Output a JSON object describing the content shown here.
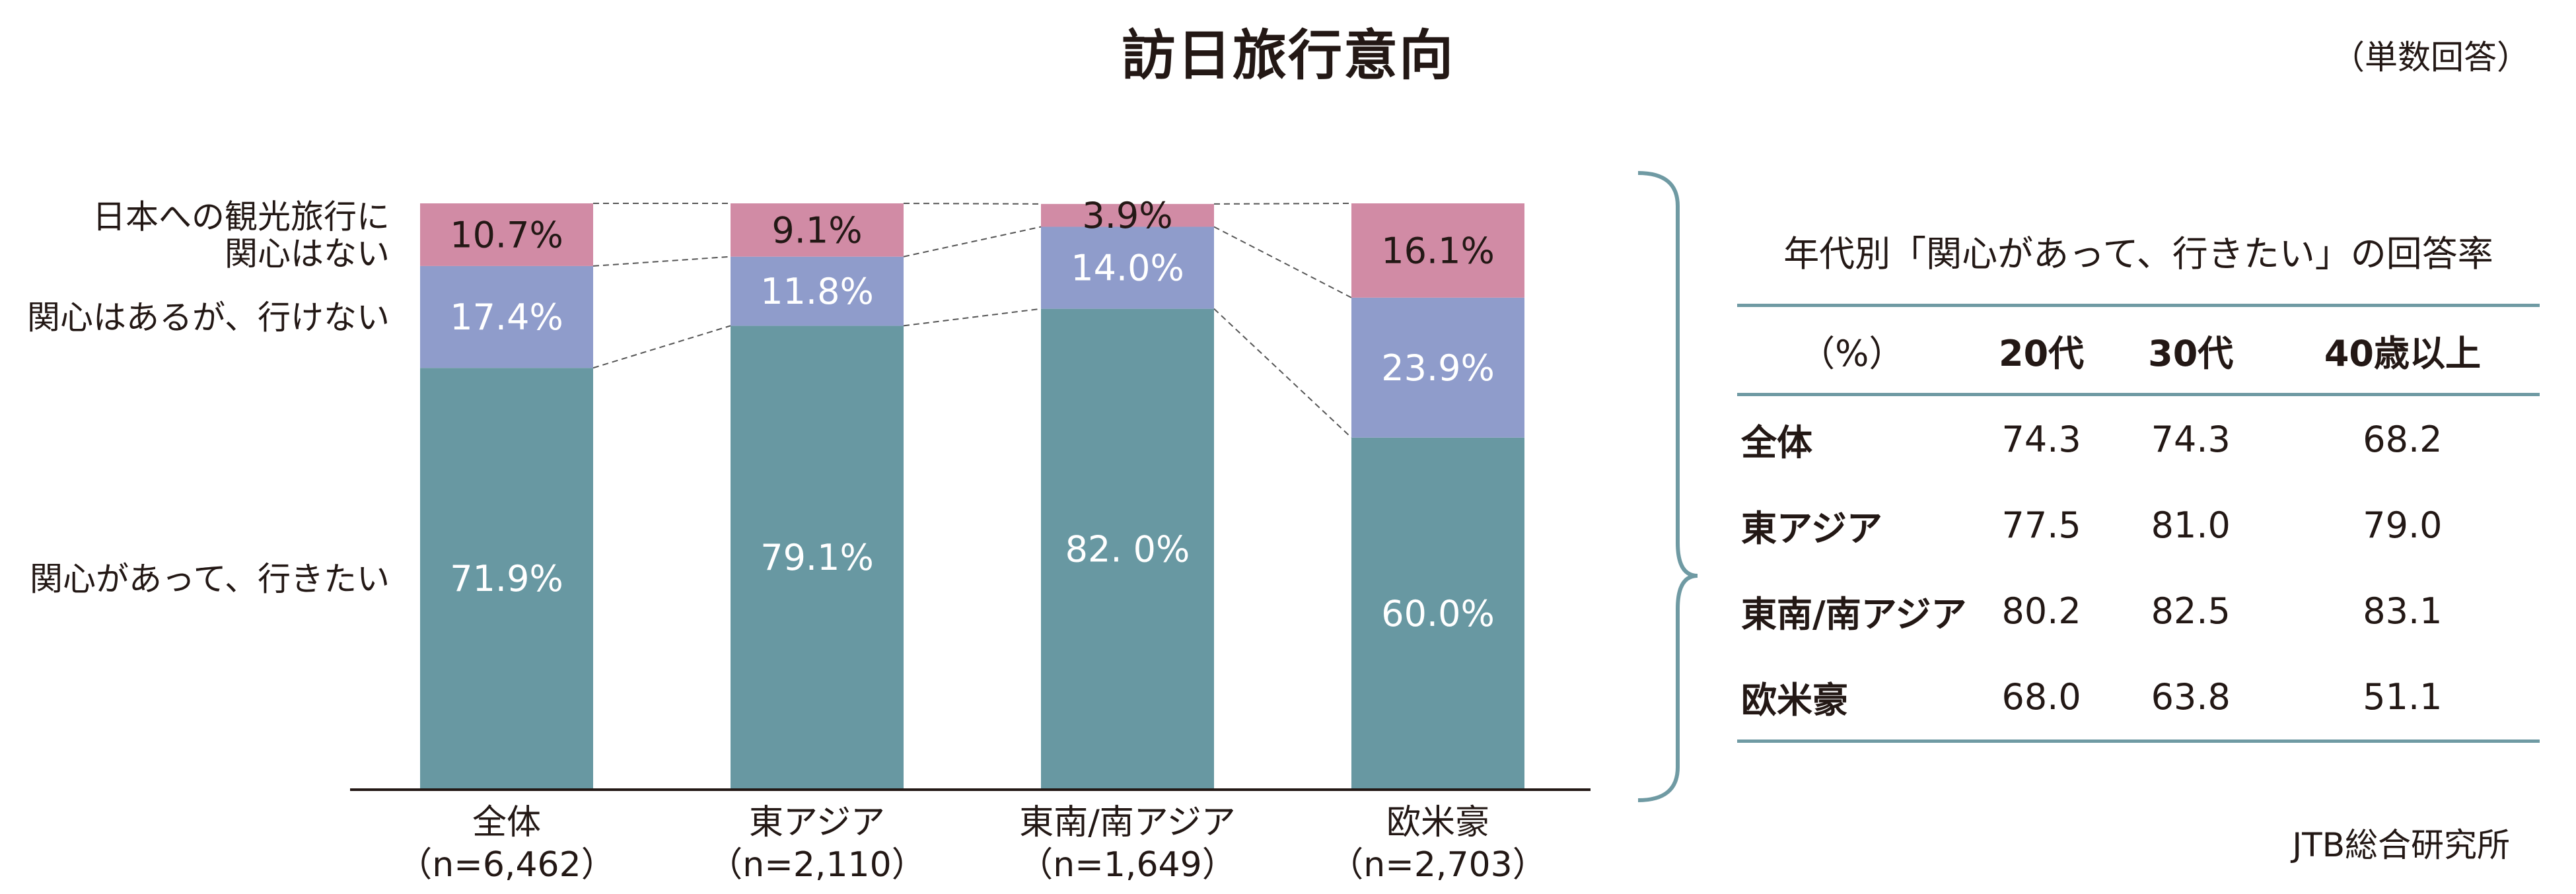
{
  "title": "訪日旅行意向",
  "answer_note": "（単数回答）",
  "source": "JTB総合研究所",
  "chart_data": {
    "type": "bar",
    "stacked": true,
    "categories": [
      "全体",
      "東アジア",
      "東南/南アジア",
      "欧米豪"
    ],
    "sample_sizes": [
      "（n=6,462）",
      "（n=2,110）",
      "（n=1,649）",
      "（n=2,703）"
    ],
    "ylim": [
      0,
      100
    ],
    "grid": false,
    "series": [
      {
        "name": "関心があって、行きたい",
        "values": [
          71.9,
          79.1,
          82.0,
          60.0
        ],
        "labels": [
          "71.9%",
          "79.1%",
          "82. 0%",
          "60.0%"
        ],
        "color": "#6898a2",
        "label_color": "#ffffff"
      },
      {
        "name": "関心はあるが、行けない",
        "values": [
          17.4,
          11.8,
          14.0,
          23.9
        ],
        "labels": [
          "17.4%",
          "11.8%",
          "14.0%",
          "23.9%"
        ],
        "color": "#8f9ccb",
        "label_color": "#ffffff"
      },
      {
        "name_lines": [
          "日本への観光旅行に",
          "関心はない"
        ],
        "values": [
          10.7,
          9.1,
          3.9,
          16.1
        ],
        "labels": [
          "10.7%",
          "9.1%",
          "3.9%",
          "16.1%"
        ],
        "color": "#d18ba5",
        "label_color": "#231815"
      }
    ]
  },
  "age_table": {
    "title": "年代別「関心があって、行きたい」の回答率",
    "unit": "（%）",
    "columns": [
      "20代",
      "30代",
      "40歳以上"
    ],
    "rows": [
      {
        "label": "全体",
        "values": [
          "74.3",
          "74.3",
          "68.2"
        ]
      },
      {
        "label": "東アジア",
        "values": [
          "77.5",
          "81.0",
          "79.0"
        ]
      },
      {
        "label": "東南/南アジア",
        "values": [
          "80.2",
          "82.5",
          "83.1"
        ]
      },
      {
        "label": "欧米豪",
        "values": [
          "68.0",
          "63.8",
          "51.1"
        ]
      }
    ]
  },
  "colors": {
    "accent": "#6f9aa3",
    "text": "#231815"
  }
}
